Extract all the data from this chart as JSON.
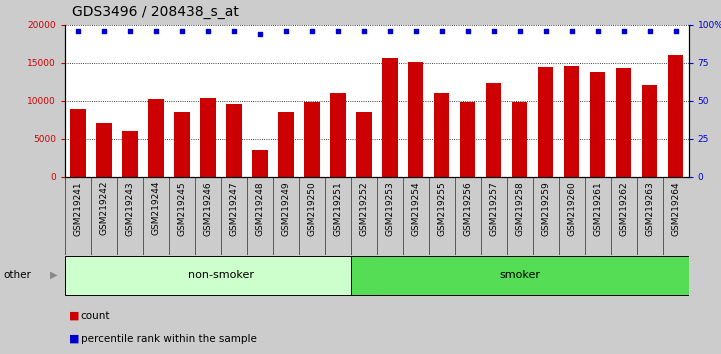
{
  "title": "GDS3496 / 208438_s_at",
  "categories": [
    "GSM219241",
    "GSM219242",
    "GSM219243",
    "GSM219244",
    "GSM219245",
    "GSM219246",
    "GSM219247",
    "GSM219248",
    "GSM219249",
    "GSM219250",
    "GSM219251",
    "GSM219252",
    "GSM219253",
    "GSM219254",
    "GSM219255",
    "GSM219256",
    "GSM219257",
    "GSM219258",
    "GSM219259",
    "GSM219260",
    "GSM219261",
    "GSM219262",
    "GSM219263",
    "GSM219264"
  ],
  "bar_values": [
    8900,
    7100,
    6100,
    10200,
    8500,
    10400,
    9600,
    3600,
    8500,
    9800,
    11100,
    8600,
    15600,
    15100,
    11000,
    9800,
    12400,
    9800,
    14500,
    14600,
    13800,
    14300,
    12100,
    16000
  ],
  "percentile_values": [
    96,
    96,
    96,
    96,
    96,
    96,
    96,
    94,
    96,
    96,
    96,
    96,
    96,
    96,
    96,
    96,
    96,
    96,
    96,
    96,
    96,
    96,
    96,
    96
  ],
  "bar_color": "#cc0000",
  "dot_color": "#0000cc",
  "ylim_left": [
    0,
    20000
  ],
  "yticks_left": [
    0,
    5000,
    10000,
    15000,
    20000
  ],
  "yticks_right": [
    0,
    25,
    50,
    75,
    100
  ],
  "ytick_labels_right": [
    "0",
    "25",
    "50",
    "75",
    "100%"
  ],
  "groups": [
    {
      "label": "non-smoker",
      "start": 0,
      "end": 11,
      "color": "#ccffcc"
    },
    {
      "label": "smoker",
      "start": 11,
      "end": 23,
      "color": "#55dd55"
    }
  ],
  "other_label": "other",
  "legend_count_label": "count",
  "legend_pct_label": "percentile rank within the sample",
  "bg_color": "#cccccc",
  "plot_bg_color": "#ffffff",
  "axis_left_color": "#cc0000",
  "axis_right_color": "#0000cc",
  "title_fontsize": 10,
  "tick_fontsize": 6.5,
  "grid_color": "#000000"
}
